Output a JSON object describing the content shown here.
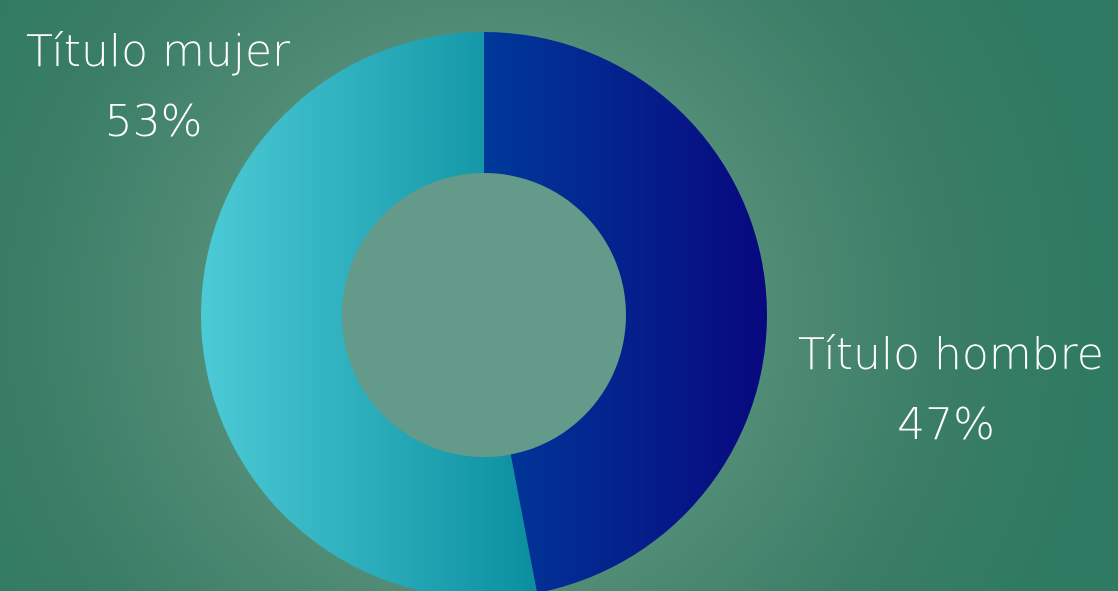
{
  "chart_data": {
    "type": "pie",
    "subtype": "donut",
    "slices": [
      {
        "label": "Título hombre",
        "value": 47,
        "display": "47%",
        "color_start": "#00399a",
        "color_end": "#08087e"
      },
      {
        "label": "Título mujer",
        "value": 53,
        "display": "53%",
        "color_start": "#4ccbd6",
        "color_end": "#0a8e9f"
      }
    ],
    "hole_color": "#639a89",
    "start_angle": "12 o'clock",
    "direction": "clockwise",
    "legend": "none"
  }
}
